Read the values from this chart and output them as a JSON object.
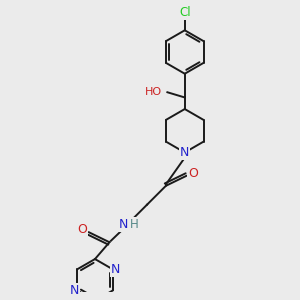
{
  "background_color": "#ebebeb",
  "bond_color": "#1a1a1a",
  "atom_colors": {
    "C": "#1a1a1a",
    "N": "#2222cc",
    "O": "#cc2222",
    "Cl": "#22cc22",
    "H": "#558888"
  },
  "figsize": [
    3.0,
    3.0
  ],
  "dpi": 100,
  "xlim": [
    0,
    10
  ],
  "ylim": [
    0,
    10
  ]
}
